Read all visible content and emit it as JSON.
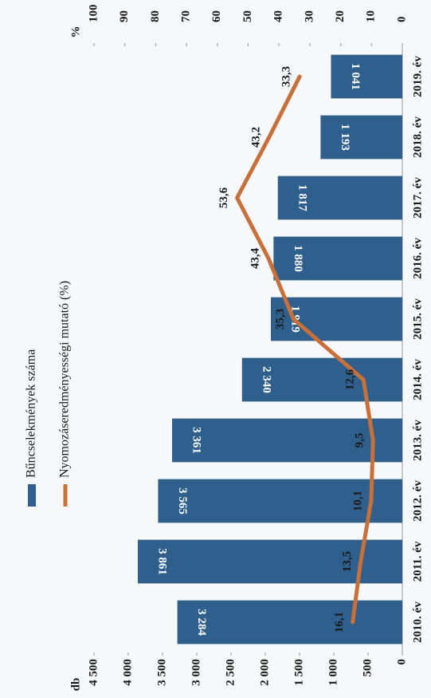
{
  "chart_data": {
    "type": "bar_line",
    "categories": [
      "2010. év",
      "2011. év",
      "2012. év",
      "2013. év",
      "2014. év",
      "2015. év",
      "2016. év",
      "2017. év",
      "2018. év",
      "2019. év"
    ],
    "series": [
      {
        "name": "Bűncselekmények száma",
        "type": "bar",
        "color": "#2f5f8c",
        "axis": "y",
        "values": [
          3284,
          3861,
          3565,
          3361,
          2340,
          1919,
          1880,
          1817,
          1193,
          1041
        ],
        "value_labels": [
          "3 284",
          "3 861",
          "3 565",
          "3 361",
          "2 340",
          "1 919",
          "1 880",
          "1 817",
          "1 193",
          "1 041"
        ]
      },
      {
        "name": "Nyomozáseredményességi mutató (%)",
        "type": "line",
        "color": "#c8703a",
        "axis": "y2",
        "values": [
          16.1,
          13.5,
          10.1,
          9.5,
          12.6,
          35.3,
          43.4,
          53.6,
          43.2,
          33.3
        ],
        "value_labels": [
          "16,1",
          "13,5",
          "10,1",
          "9,5",
          "12,6",
          "35,3",
          "43,4",
          "53,6",
          "43,2",
          "33,3"
        ]
      }
    ],
    "y_label": "db",
    "y2_label": "%",
    "ylim": [
      0,
      4500
    ],
    "yticks": [
      0,
      500,
      {
        "value": 1000,
        "label": "1 000"
      },
      {
        "value": 1500,
        "label": "1 500"
      },
      {
        "value": 2000,
        "label": "2 000"
      },
      {
        "value": 2500,
        "label": "2 500"
      },
      {
        "value": 3000,
        "label": "3 000"
      },
      {
        "value": 3500,
        "label": "3 500"
      },
      {
        "value": 4000,
        "label": "4 000"
      },
      {
        "value": 4500,
        "label": "4 500"
      }
    ],
    "y2lim": [
      0,
      100
    ],
    "y2ticks": [
      0,
      10,
      20,
      30,
      40,
      50,
      60,
      70,
      80,
      90,
      100
    ]
  }
}
